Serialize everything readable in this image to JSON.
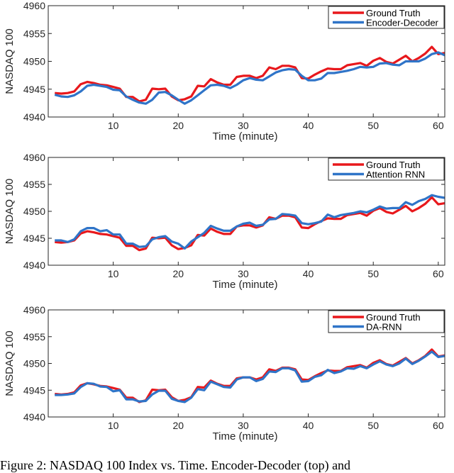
{
  "caption": "Figure 2: NASDAQ 100 Index vs. Time. Encoder-Decoder (top) and",
  "colors": {
    "ground_truth": "#e8181c",
    "prediction": "#2f74c8"
  },
  "chart_data": [
    {
      "type": "line",
      "xlabel": "Time (minute)",
      "ylabel": "NASDAQ 100",
      "xlim": [
        0,
        61
      ],
      "ylim": [
        4940,
        4960
      ],
      "xticks": [
        10,
        20,
        30,
        40,
        50,
        60
      ],
      "yticks": [
        4940,
        4945,
        4950,
        4955,
        4960
      ],
      "legend": "top-right",
      "grid": false,
      "x": [
        1,
        2,
        3,
        4,
        5,
        6,
        7,
        8,
        9,
        10,
        11,
        12,
        13,
        14,
        15,
        16,
        17,
        18,
        19,
        20,
        21,
        22,
        23,
        24,
        25,
        26,
        27,
        28,
        29,
        30,
        31,
        32,
        33,
        34,
        35,
        36,
        37,
        38,
        39,
        40,
        41,
        42,
        43,
        44,
        45,
        46,
        47,
        48,
        49,
        50,
        51,
        52,
        53,
        54,
        55,
        56,
        57,
        58,
        59,
        60,
        61
      ],
      "series": [
        {
          "name": "Ground Truth",
          "values": [
            4944.3,
            4944.2,
            4944.3,
            4944.6,
            4945.9,
            4946.3,
            4946.1,
            4945.8,
            4945.7,
            4945.4,
            4945.1,
            4943.6,
            4943.6,
            4942.8,
            4943.1,
            4945.1,
            4945.0,
            4945.1,
            4943.7,
            4943.0,
            4943.2,
            4943.7,
            4945.6,
            4945.5,
            4946.8,
            4946.2,
            4945.8,
            4945.8,
            4947.2,
            4947.4,
            4947.4,
            4947.0,
            4947.4,
            4948.9,
            4948.6,
            4949.2,
            4949.2,
            4948.9,
            4947.0,
            4946.9,
            4947.6,
            4948.2,
            4948.7,
            4948.6,
            4948.6,
            4949.3,
            4949.5,
            4949.7,
            4949.2,
            4950.1,
            4950.6,
            4949.9,
            4949.6,
            4950.3,
            4951.0,
            4950.0,
            4950.6,
            4951.4,
            4952.6,
            4951.3,
            4951.5
          ]
        },
        {
          "name": "Encoder-Decoder",
          "values": [
            4944.0,
            4943.7,
            4943.6,
            4943.9,
            4944.6,
            4945.6,
            4945.8,
            4945.6,
            4945.4,
            4944.9,
            4944.8,
            4943.7,
            4943.1,
            4942.6,
            4942.4,
            4943.1,
            4944.4,
            4944.5,
            4943.9,
            4943.1,
            4942.4,
            4943.0,
            4943.9,
            4944.8,
            4945.7,
            4945.8,
            4945.6,
            4945.2,
            4945.8,
            4946.6,
            4947.0,
            4946.7,
            4946.6,
            4947.3,
            4948.0,
            4948.4,
            4948.6,
            4948.5,
            4947.4,
            4946.6,
            4946.6,
            4946.9,
            4947.9,
            4947.9,
            4948.1,
            4948.3,
            4948.6,
            4949.0,
            4948.9,
            4949.0,
            4949.6,
            4949.7,
            4949.4,
            4949.3,
            4950.0,
            4950.0,
            4950.0,
            4950.5,
            4951.3,
            4951.6,
            4951.1
          ]
        }
      ]
    },
    {
      "type": "line",
      "xlabel": "Time (minute)",
      "ylabel": "NASDAQ 100",
      "xlim": [
        0,
        61
      ],
      "ylim": [
        4940,
        4960
      ],
      "xticks": [
        10,
        20,
        30,
        40,
        50,
        60
      ],
      "yticks": [
        4940,
        4945,
        4950,
        4955,
        4960
      ],
      "legend": "top-right",
      "grid": false,
      "x": [
        1,
        2,
        3,
        4,
        5,
        6,
        7,
        8,
        9,
        10,
        11,
        12,
        13,
        14,
        15,
        16,
        17,
        18,
        19,
        20,
        21,
        22,
        23,
        24,
        25,
        26,
        27,
        28,
        29,
        30,
        31,
        32,
        33,
        34,
        35,
        36,
        37,
        38,
        39,
        40,
        41,
        42,
        43,
        44,
        45,
        46,
        47,
        48,
        49,
        50,
        51,
        52,
        53,
        54,
        55,
        56,
        57,
        58,
        59,
        60,
        61
      ],
      "series": [
        {
          "name": "Ground Truth",
          "values": [
            4944.3,
            4944.2,
            4944.3,
            4944.6,
            4945.9,
            4946.3,
            4946.1,
            4945.8,
            4945.7,
            4945.4,
            4945.1,
            4943.6,
            4943.6,
            4942.8,
            4943.1,
            4945.1,
            4945.0,
            4945.1,
            4943.7,
            4943.0,
            4943.2,
            4943.7,
            4945.6,
            4945.5,
            4946.8,
            4946.2,
            4945.8,
            4945.8,
            4947.2,
            4947.4,
            4947.4,
            4947.0,
            4947.4,
            4948.9,
            4948.6,
            4949.2,
            4949.2,
            4948.9,
            4947.0,
            4946.9,
            4947.6,
            4948.2,
            4948.7,
            4948.6,
            4948.6,
            4949.3,
            4949.5,
            4949.7,
            4949.2,
            4950.1,
            4950.6,
            4949.9,
            4949.6,
            4950.3,
            4951.0,
            4950.0,
            4950.6,
            4951.4,
            4952.6,
            4951.3,
            4951.5
          ]
        },
        {
          "name": "Attention RNN",
          "values": [
            4944.6,
            4944.6,
            4944.3,
            4944.8,
            4946.3,
            4946.9,
            4946.9,
            4946.3,
            4946.5,
            4945.7,
            4945.7,
            4944.0,
            4944.0,
            4943.4,
            4943.5,
            4944.8,
            4945.2,
            4945.4,
            4944.4,
            4944.0,
            4943.1,
            4944.4,
            4945.2,
            4946.0,
            4947.3,
            4946.8,
            4946.4,
            4946.4,
            4947.2,
            4947.7,
            4947.9,
            4947.3,
            4947.5,
            4948.5,
            4948.6,
            4949.5,
            4949.4,
            4949.2,
            4947.8,
            4947.6,
            4947.8,
            4948.1,
            4949.4,
            4948.9,
            4949.3,
            4949.5,
            4949.7,
            4950.0,
            4949.8,
            4950.3,
            4950.9,
            4950.5,
            4950.6,
            4950.6,
            4951.7,
            4951.2,
            4951.9,
            4952.3,
            4953.0,
            4952.7,
            4952.5
          ]
        }
      ]
    },
    {
      "type": "line",
      "xlabel": "Time (minute)",
      "ylabel": "NASDAQ 100",
      "xlim": [
        0,
        61
      ],
      "ylim": [
        4940,
        4960
      ],
      "xticks": [
        10,
        20,
        30,
        40,
        50,
        60
      ],
      "yticks": [
        4940,
        4945,
        4950,
        4955,
        4960
      ],
      "legend": "top-right",
      "grid": false,
      "x": [
        1,
        2,
        3,
        4,
        5,
        6,
        7,
        8,
        9,
        10,
        11,
        12,
        13,
        14,
        15,
        16,
        17,
        18,
        19,
        20,
        21,
        22,
        23,
        24,
        25,
        26,
        27,
        28,
        29,
        30,
        31,
        32,
        33,
        34,
        35,
        36,
        37,
        38,
        39,
        40,
        41,
        42,
        43,
        44,
        45,
        46,
        47,
        48,
        49,
        50,
        51,
        52,
        53,
        54,
        55,
        56,
        57,
        58,
        59,
        60,
        61
      ],
      "series": [
        {
          "name": "Ground Truth",
          "values": [
            4944.3,
            4944.2,
            4944.3,
            4944.6,
            4945.9,
            4946.3,
            4946.1,
            4945.8,
            4945.7,
            4945.4,
            4945.1,
            4943.6,
            4943.6,
            4942.8,
            4943.1,
            4945.1,
            4945.0,
            4945.1,
            4943.7,
            4943.0,
            4943.2,
            4943.7,
            4945.6,
            4945.5,
            4946.8,
            4946.2,
            4945.8,
            4945.8,
            4947.2,
            4947.4,
            4947.4,
            4947.0,
            4947.4,
            4948.9,
            4948.6,
            4949.2,
            4949.2,
            4948.9,
            4947.0,
            4946.9,
            4947.6,
            4948.2,
            4948.7,
            4948.6,
            4948.6,
            4949.3,
            4949.5,
            4949.7,
            4949.2,
            4950.1,
            4950.6,
            4949.9,
            4949.6,
            4950.3,
            4951.0,
            4950.0,
            4950.6,
            4951.4,
            4952.6,
            4951.3,
            4951.5
          ]
        },
        {
          "name": "DA-RNN",
          "values": [
            4944.1,
            4944.1,
            4944.2,
            4944.4,
            4945.6,
            4946.3,
            4946.2,
            4945.7,
            4945.6,
            4944.8,
            4945.0,
            4943.3,
            4943.3,
            4942.9,
            4943.0,
            4944.2,
            4944.9,
            4944.9,
            4943.4,
            4943.0,
            4942.8,
            4943.6,
            4945.2,
            4945.0,
            4946.6,
            4946.1,
            4945.6,
            4945.5,
            4947.0,
            4947.4,
            4947.4,
            4946.7,
            4947.1,
            4948.5,
            4948.4,
            4949.1,
            4949.1,
            4948.7,
            4946.6,
            4946.7,
            4947.5,
            4947.8,
            4948.8,
            4948.2,
            4948.5,
            4949.1,
            4949.0,
            4949.5,
            4949.1,
            4949.8,
            4950.4,
            4949.8,
            4949.5,
            4950.0,
            4950.9,
            4949.9,
            4950.5,
            4951.3,
            4952.2,
            4951.2,
            4951.4
          ]
        }
      ]
    }
  ]
}
